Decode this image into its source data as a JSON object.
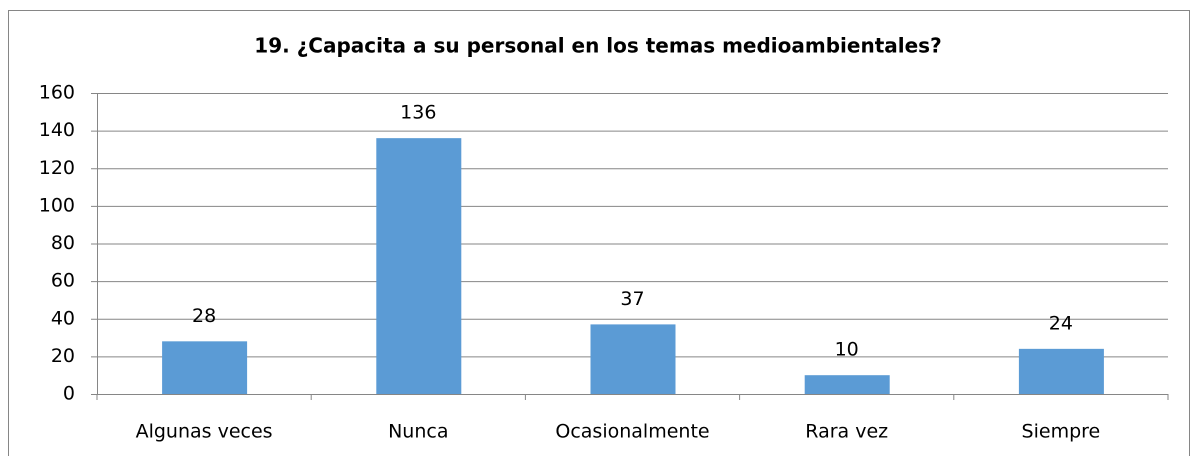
{
  "chart_data": {
    "type": "bar",
    "title": "19. ¿Capacita a su personal en los temas medioambientales?",
    "categories": [
      "Algunas veces",
      "Nunca",
      "Ocasionalmente",
      "Rara vez",
      "Siempre"
    ],
    "values": [
      28,
      136,
      37,
      10,
      24
    ],
    "color": "#5b9bd5",
    "ylim": [
      0,
      160
    ],
    "yticks": [
      0,
      20,
      40,
      60,
      80,
      100,
      120,
      140,
      160
    ],
    "grid": true
  }
}
